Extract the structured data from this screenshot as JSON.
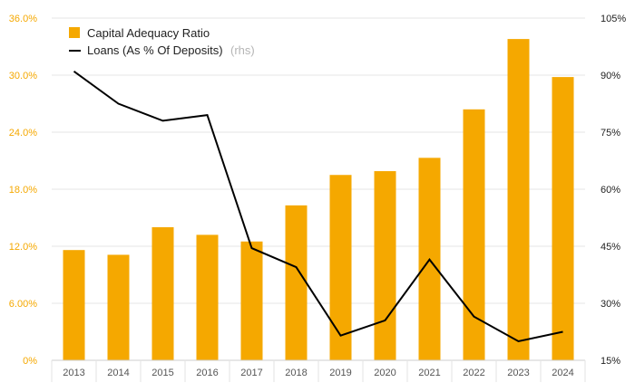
{
  "chart_data": {
    "type": "bar",
    "categories": [
      "2013",
      "2014",
      "2015",
      "2016",
      "2017",
      "2018",
      "2019",
      "2020",
      "2021",
      "2022",
      "2023",
      "2024"
    ],
    "series": [
      {
        "name": "Capital Adequacy Ratio",
        "kind": "bar",
        "axis": "left",
        "color": "#f5a800",
        "values": [
          11.6,
          11.1,
          14.0,
          13.2,
          12.5,
          16.3,
          19.5,
          19.9,
          21.3,
          26.4,
          33.8,
          29.8
        ]
      },
      {
        "name": "Loans (As % Of Deposits)",
        "name_suffix": "(rhs)",
        "kind": "line",
        "axis": "right",
        "color": "#000000",
        "values": [
          91,
          82.5,
          78,
          79.5,
          44.5,
          39.5,
          21.5,
          25.5,
          41.5,
          26.5,
          20,
          22.5
        ]
      }
    ],
    "y_left": {
      "min": 0,
      "max": 36,
      "ticks": [
        0,
        6,
        12,
        18,
        24,
        30,
        36
      ],
      "tick_labels": [
        "0%",
        "6.00%",
        "12.0%",
        "18.0%",
        "24.0%",
        "30.0%",
        "36.0%"
      ],
      "color": "#f5a800"
    },
    "y_right": {
      "min": 15,
      "max": 105,
      "ticks": [
        15,
        30,
        45,
        60,
        75,
        90,
        105
      ],
      "tick_labels": [
        "15%",
        "30%",
        "45%",
        "60%",
        "75%",
        "90%",
        "105%"
      ]
    },
    "grid": true,
    "legend_position": "top-left"
  }
}
